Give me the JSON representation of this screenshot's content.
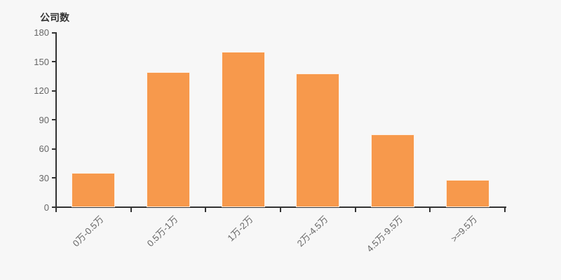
{
  "page": {
    "background_color": "#f7f7f7"
  },
  "chart_data": {
    "type": "bar",
    "title": "公司数",
    "ylabel": "公司数",
    "xlabel": "",
    "categories": [
      "0万-0.5万",
      "0.5万-1万",
      "1万-2万",
      "2万-4.5万",
      "4.5万-9.5万",
      ">=9.5万"
    ],
    "values": [
      35,
      139,
      160,
      138,
      75,
      28
    ],
    "ylim": [
      0,
      180
    ],
    "yticks": [
      0,
      30,
      60,
      90,
      120,
      150,
      180
    ],
    "grid": false,
    "legend_position": "none",
    "x_label_rotation_deg": -45,
    "bar_color": "#f7994c",
    "bar_border_color": "#ffffff",
    "axis_color": "#333333",
    "tick_label_color": "#666666",
    "title_color": "#333333"
  }
}
